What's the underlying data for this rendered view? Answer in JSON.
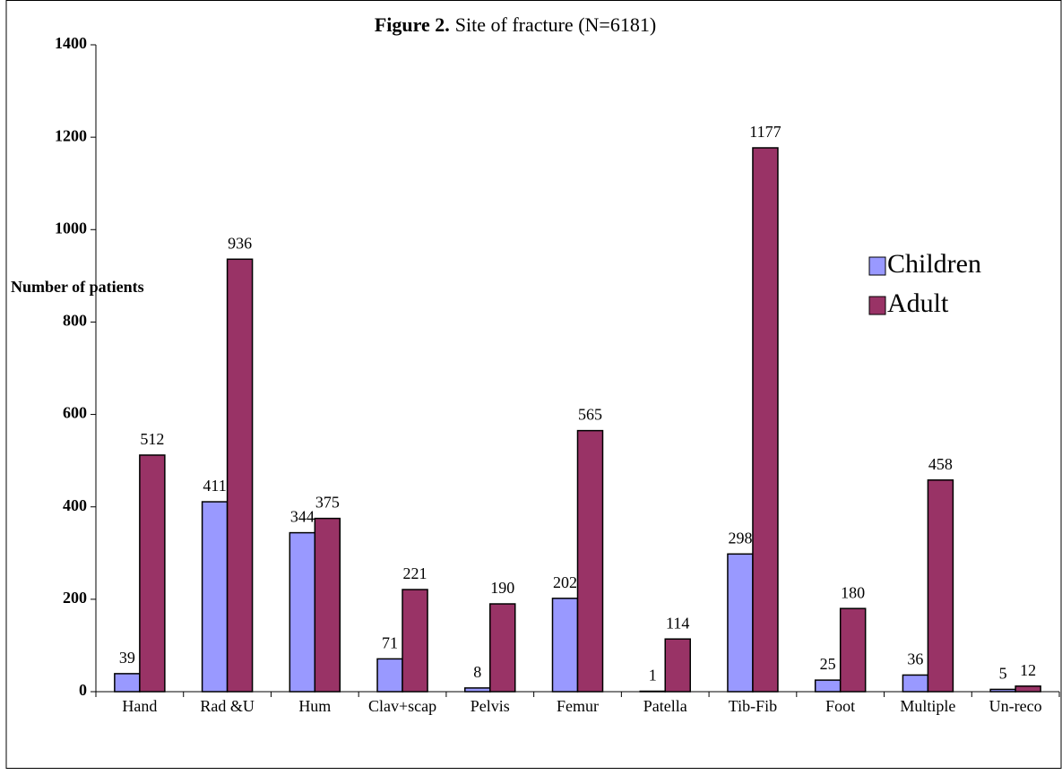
{
  "chart_data": {
    "type": "bar",
    "title_prefix": "Figure 2.",
    "title": "Site of fracture (N=6181)",
    "y_label": "Number of patients",
    "categories": [
      "Hand",
      "Rad &U",
      "Hum",
      "Clav+scap",
      "Pelvis",
      "Femur",
      "Patella",
      "Tib-Fib",
      "Foot",
      "Multiple",
      "Un-reco"
    ],
    "series": [
      {
        "name": "Children",
        "color": "#9999ff",
        "values": [
          39,
          411,
          344,
          71,
          8,
          202,
          1,
          298,
          25,
          36,
          5
        ]
      },
      {
        "name": "Adult",
        "color": "#993366",
        "values": [
          512,
          936,
          375,
          221,
          190,
          565,
          114,
          1177,
          180,
          458,
          12
        ]
      }
    ],
    "ylim": [
      0,
      1400
    ],
    "yticks": [
      0,
      200,
      400,
      600,
      800,
      1000,
      1200,
      1400
    ],
    "grid": false,
    "legend": "right"
  }
}
